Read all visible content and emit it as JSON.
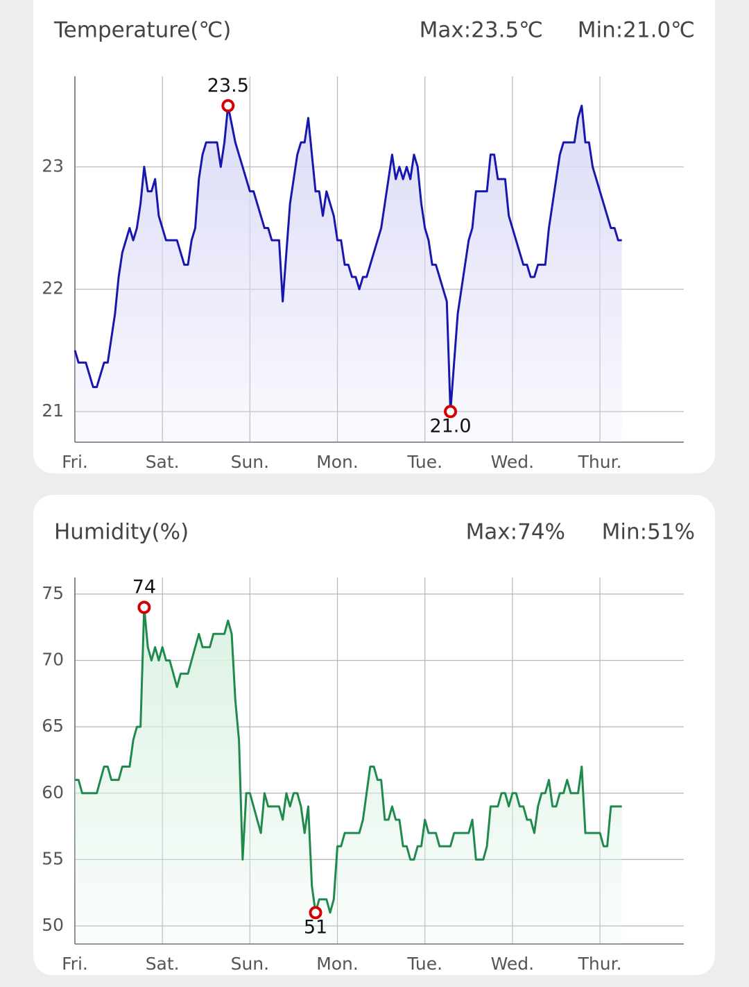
{
  "chart_data": [
    {
      "type": "area-line",
      "title": "Temperature(℃)",
      "max_label": "Max:23.5℃",
      "min_label": "Min:21.0℃",
      "color": "#1717b0",
      "fill_color": "#dcdcf7",
      "xlim": [
        0,
        167
      ],
      "ylim": [
        20.75,
        23.74
      ],
      "xticks": [
        {
          "value": 0,
          "label": "Fri."
        },
        {
          "value": 24,
          "label": "Sat."
        },
        {
          "value": 48,
          "label": "Sun."
        },
        {
          "value": 72,
          "label": "Mon."
        },
        {
          "value": 96,
          "label": "Tue."
        },
        {
          "value": 120,
          "label": "Wed."
        },
        {
          "value": 144,
          "label": "Thur."
        }
      ],
      "yticks": [
        21,
        22,
        23
      ],
      "grid": true,
      "x": [
        0,
        1,
        3,
        5,
        6,
        8,
        9,
        11,
        12,
        13,
        15,
        16,
        17,
        18,
        19,
        20,
        21,
        22,
        23,
        25,
        28,
        30,
        31,
        32,
        33,
        34,
        35,
        36,
        39,
        40,
        41,
        42,
        44,
        48,
        49,
        52,
        53,
        54,
        56,
        57,
        58,
        59,
        61,
        62,
        63,
        64,
        66,
        67,
        68,
        69,
        71,
        72,
        73,
        74,
        75,
        76,
        77,
        78,
        79,
        80,
        84,
        87,
        88,
        89,
        90,
        91,
        92,
        93,
        94,
        95,
        96,
        97,
        98,
        99,
        102,
        103,
        105,
        108,
        109,
        110,
        113,
        114,
        115,
        116,
        118,
        119,
        123,
        124,
        125,
        126,
        127,
        129,
        130,
        133,
        134,
        137,
        138,
        139,
        140,
        141,
        142,
        147,
        148,
        149,
        150
      ],
      "values": [
        21.5,
        21.4,
        21.4,
        21.2,
        21.2,
        21.4,
        21.4,
        21.8,
        22.1,
        22.3,
        22.5,
        22.4,
        22.5,
        22.7,
        23.0,
        22.8,
        22.8,
        22.9,
        22.6,
        22.4,
        22.4,
        22.2,
        22.2,
        22.4,
        22.5,
        22.9,
        23.1,
        23.2,
        23.2,
        23.0,
        23.2,
        23.5,
        23.2,
        22.8,
        22.8,
        22.5,
        22.5,
        22.4,
        22.4,
        21.9,
        22.3,
        22.7,
        23.1,
        23.2,
        23.2,
        23.4,
        22.8,
        22.8,
        22.6,
        22.8,
        22.6,
        22.4,
        22.4,
        22.2,
        22.2,
        22.1,
        22.1,
        22.0,
        22.1,
        22.1,
        22.5,
        23.1,
        22.9,
        23.0,
        22.9,
        23.0,
        22.9,
        23.1,
        23.0,
        22.7,
        22.5,
        22.4,
        22.2,
        22.2,
        21.9,
        21.0,
        21.8,
        22.4,
        22.5,
        22.8,
        22.8,
        23.1,
        23.1,
        22.9,
        22.9,
        22.6,
        22.2,
        22.2,
        22.1,
        22.1,
        22.2,
        22.2,
        22.5,
        23.1,
        23.2,
        23.2,
        23.4,
        23.5,
        23.2,
        23.2,
        23.0,
        22.5,
        22.5,
        22.4,
        22.4
      ],
      "annotations": [
        {
          "x": 42,
          "value": 23.5,
          "label": "23.5"
        },
        {
          "x": 103,
          "value": 21,
          "label": "21.0"
        }
      ]
    },
    {
      "type": "area-line",
      "title": "Humidity(%)",
      "max_label": "Max:74%",
      "min_label": "Min:51%",
      "color": "#1f8a4c",
      "fill_color": "#dcf2e4",
      "xlim": [
        0,
        167
      ],
      "ylim": [
        48.64,
        76.25
      ],
      "xticks": [
        {
          "value": 0,
          "label": "Fri."
        },
        {
          "value": 24,
          "label": "Sat."
        },
        {
          "value": 48,
          "label": "Sun."
        },
        {
          "value": 72,
          "label": "Mon."
        },
        {
          "value": 96,
          "label": "Tue."
        },
        {
          "value": 120,
          "label": "Wed."
        },
        {
          "value": 144,
          "label": "Thur."
        }
      ],
      "yticks": [
        50,
        55,
        60,
        65,
        70,
        75
      ],
      "grid": true,
      "x": [
        0,
        1,
        2,
        6,
        8,
        9,
        10,
        12,
        13,
        15,
        16,
        17,
        18,
        19,
        20,
        21,
        22,
        23,
        24,
        25,
        26,
        28,
        29,
        31,
        32,
        34,
        35,
        37,
        38,
        41,
        42,
        43,
        44,
        45,
        46,
        47,
        48,
        51,
        52,
        53,
        56,
        57,
        58,
        59,
        60,
        61,
        62,
        63,
        64,
        65,
        66,
        67,
        69,
        70,
        71,
        72,
        73,
        74,
        78,
        79,
        81,
        82,
        83,
        84,
        85,
        86,
        87,
        88,
        89,
        90,
        91,
        92,
        93,
        94,
        95,
        96,
        97,
        99,
        100,
        103,
        104,
        108,
        109,
        110,
        112,
        113,
        114,
        116,
        117,
        118,
        119,
        120,
        121,
        122,
        123,
        124,
        125,
        126,
        127,
        128,
        129,
        130,
        131,
        132,
        133,
        134,
        135,
        136,
        138,
        139,
        140,
        144,
        145,
        146,
        147,
        150
      ],
      "values": [
        61,
        61,
        60,
        60,
        62,
        62,
        61,
        61,
        62,
        62,
        64,
        65,
        65,
        74,
        71,
        70,
        71,
        70,
        71,
        70,
        70,
        68,
        69,
        69,
        70,
        72,
        71,
        71,
        72,
        72,
        73,
        72,
        67,
        64,
        55,
        60,
        60,
        57,
        60,
        59,
        59,
        58,
        60,
        59,
        60,
        60,
        59,
        57,
        59,
        53,
        51,
        52,
        52,
        51,
        52,
        56,
        56,
        57,
        57,
        58,
        62,
        62,
        61,
        61,
        58,
        58,
        59,
        58,
        58,
        56,
        56,
        55,
        55,
        56,
        56,
        58,
        57,
        57,
        56,
        56,
        57,
        57,
        58,
        55,
        55,
        56,
        59,
        59,
        60,
        60,
        59,
        60,
        60,
        59,
        59,
        58,
        58,
        57,
        59,
        60,
        60,
        61,
        59,
        59,
        60,
        60,
        61,
        60,
        60,
        62,
        57,
        57,
        56,
        56,
        59,
        59
      ],
      "annotations": [
        {
          "x": 19,
          "value": 74,
          "label": "74"
        },
        {
          "x": 66,
          "value": 51,
          "label": "51"
        }
      ]
    }
  ]
}
